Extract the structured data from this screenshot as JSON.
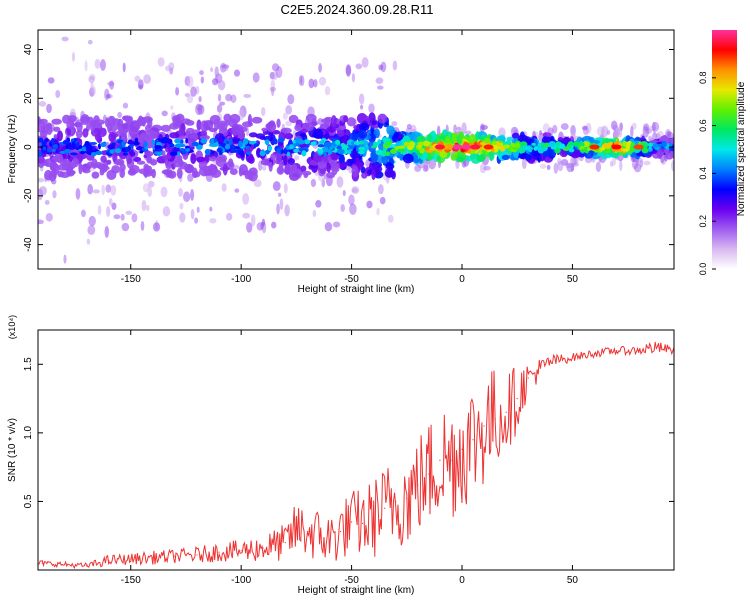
{
  "title": "C2E5.2024.360.09.28.R11",
  "chart_data": [
    {
      "type": "heatmap",
      "title": "C2E5.2024.360.09.28.R11",
      "xlabel": "Height of straight line (km)",
      "ylabel": "Frequency (Hz)",
      "xlim": [
        -192,
        96
      ],
      "ylim": [
        -50,
        48
      ],
      "x_ticks": [
        "-150",
        "-100",
        "-50",
        "0",
        "50"
      ],
      "y_ticks": [
        "-40",
        "-20",
        "0",
        "20",
        "40"
      ],
      "colorbar": {
        "label": "Normalized spectral amplitude",
        "range": [
          0.0,
          1.0
        ],
        "ticks": [
          "0.0",
          "0.2",
          "0.4",
          "0.6",
          "0.8"
        ],
        "colormap": [
          "#ffffff",
          "#d8b8f0",
          "#9f5cf0",
          "#6a00f0",
          "#0000ff",
          "#0080ff",
          "#00e8e8",
          "#00e860",
          "#60f000",
          "#e8e800",
          "#ff9000",
          "#ff0000",
          "#ff30a0"
        ]
      },
      "ridge_amplitude": [
        {
          "x": -190,
          "a": 0.35
        },
        {
          "x": -170,
          "a": 0.38
        },
        {
          "x": -150,
          "a": 0.37
        },
        {
          "x": -130,
          "a": 0.38
        },
        {
          "x": -110,
          "a": 0.4
        },
        {
          "x": -90,
          "a": 0.41
        },
        {
          "x": -70,
          "a": 0.43
        },
        {
          "x": -50,
          "a": 0.47
        },
        {
          "x": -30,
          "a": 0.62
        },
        {
          "x": -10,
          "a": 0.85
        },
        {
          "x": 0,
          "a": 0.9
        },
        {
          "x": 10,
          "a": 0.8
        },
        {
          "x": 30,
          "a": 0.55
        },
        {
          "x": 50,
          "a": 0.55
        },
        {
          "x": 70,
          "a": 0.85
        },
        {
          "x": 90,
          "a": 0.4
        }
      ]
    },
    {
      "type": "line",
      "xlabel": "Height of straight line (km)",
      "ylabel": "SNR (10 * v/v)",
      "y_multiplier": "(x10⁴)",
      "xlim": [
        -192,
        96
      ],
      "ylim": [
        0,
        1.75
      ],
      "x_ticks": [
        "-150",
        "-100",
        "-50",
        "0",
        "50"
      ],
      "y_ticks": [
        "0.5",
        "1.0",
        "1.5"
      ],
      "color": "#ee3333",
      "x": [
        -190,
        -170,
        -160,
        -150,
        -140,
        -130,
        -120,
        -110,
        -100,
        -90,
        -80,
        -75,
        -70,
        -60,
        -55,
        -50,
        -45,
        -40,
        -35,
        -30,
        -25,
        -20,
        -15,
        -10,
        -5,
        0,
        5,
        10,
        15,
        20,
        25,
        30,
        40,
        50,
        60,
        70,
        80,
        85,
        90,
        96
      ],
      "y": [
        0.05,
        0.03,
        0.07,
        0.08,
        0.09,
        0.1,
        0.11,
        0.13,
        0.14,
        0.16,
        0.2,
        0.3,
        0.28,
        0.22,
        0.28,
        0.35,
        0.34,
        0.38,
        0.45,
        0.5,
        0.52,
        0.62,
        0.7,
        0.8,
        0.8,
        0.88,
        0.95,
        1.05,
        1.1,
        1.15,
        1.25,
        1.4,
        1.52,
        1.55,
        1.58,
        1.6,
        1.6,
        1.62,
        1.62,
        1.6
      ],
      "spread": [
        0.02,
        0.02,
        0.04,
        0.04,
        0.05,
        0.05,
        0.06,
        0.07,
        0.08,
        0.1,
        0.14,
        0.2,
        0.2,
        0.2,
        0.22,
        0.24,
        0.26,
        0.3,
        0.32,
        0.34,
        0.36,
        0.38,
        0.4,
        0.45,
        0.45,
        0.45,
        0.45,
        0.45,
        0.38,
        0.3,
        0.25,
        0.12,
        0.05,
        0.03,
        0.03,
        0.03,
        0.03,
        0.05,
        0.04,
        0.03
      ]
    }
  ]
}
